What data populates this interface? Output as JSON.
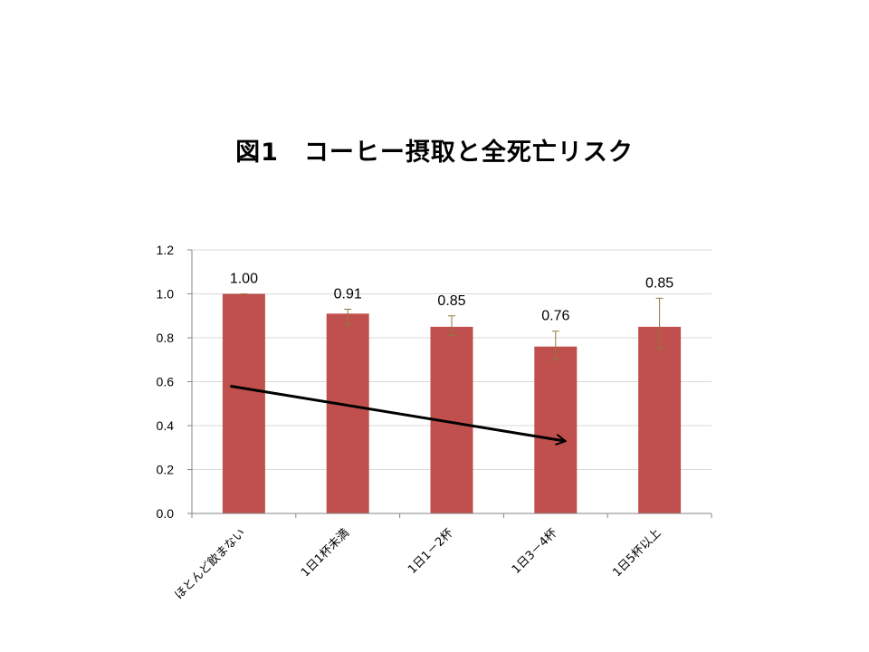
{
  "title": "図1　コーヒー摂取と全死亡リスク",
  "chart_data": {
    "type": "bar",
    "categories": [
      "ほとんど飲まない",
      "1日1杯未満",
      "1日1－2杯",
      "1日3－4杯",
      "1日5杯以上"
    ],
    "values": [
      1.0,
      0.91,
      0.85,
      0.76,
      0.85
    ],
    "data_labels": [
      "1.00",
      "0.91",
      "0.85",
      "0.76",
      "0.85"
    ],
    "error_low": [
      1.0,
      0.86,
      0.81,
      0.7,
      0.75
    ],
    "error_high": [
      1.0,
      0.93,
      0.9,
      0.83,
      0.98
    ],
    "ylim": [
      0,
      1.2
    ],
    "yticks": [
      0.0,
      0.2,
      0.4,
      0.6,
      0.8,
      1.0,
      1.2
    ],
    "ytick_labels": [
      "0.0",
      "0.2",
      "0.4",
      "0.6",
      "0.8",
      "1.0",
      "1.2"
    ],
    "grid": true,
    "legend": "none",
    "trend_arrow": {
      "from": {
        "category": 0,
        "value": 0.58
      },
      "to": {
        "category": 3,
        "value": 0.33
      }
    },
    "colors": {
      "bar": "#c0504d",
      "error_bar": "#8c7a3a",
      "grid": "#d9d9d9",
      "axis": "#868686",
      "arrow": "#000000"
    }
  }
}
